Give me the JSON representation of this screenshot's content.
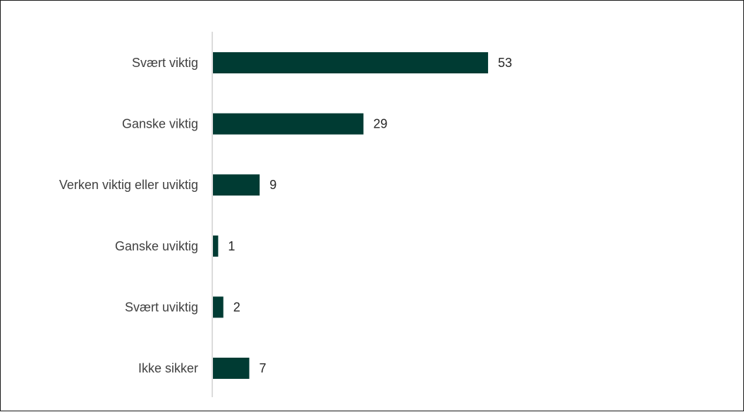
{
  "chart_data": {
    "type": "bar",
    "orientation": "horizontal",
    "categories": [
      "Svært viktig",
      "Ganske viktig",
      "Verken viktig eller uviktig",
      "Ganske uviktig",
      "Svært uviktig",
      "Ikke sikker"
    ],
    "values": [
      53,
      29,
      9,
      1,
      2,
      7
    ],
    "xlim": [
      0,
      100
    ],
    "data_labels": true,
    "grid": false,
    "legend": "none",
    "colors": {
      "bar": "#003b33",
      "axis": "#d0d0d0",
      "category_text": "#404040",
      "value_text": "#262626",
      "border": "#1a1a1a"
    }
  }
}
